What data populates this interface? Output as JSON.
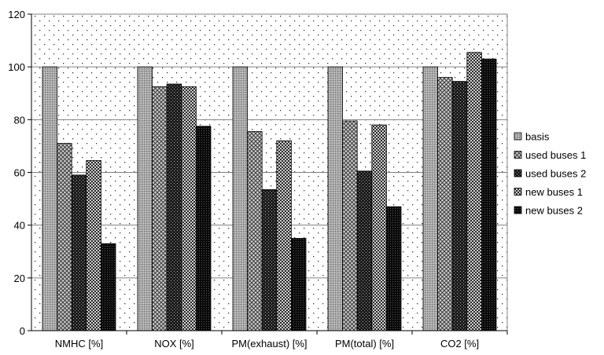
{
  "chart_data": {
    "type": "bar",
    "title": "",
    "xlabel": "",
    "ylabel": "",
    "ylim": [
      0,
      120
    ],
    "yticks": [
      0,
      20,
      40,
      60,
      80,
      100,
      120
    ],
    "grid": true,
    "legend_position": "right",
    "categories": [
      "NMHC [%]",
      "NOX [%]",
      "PM(exhaust) [%]",
      "PM(total) [%]",
      "CO2 [%]"
    ],
    "series": [
      {
        "name": "basis",
        "values": [
          100,
          100,
          100,
          100,
          100
        ]
      },
      {
        "name": "used buses 1",
        "values": [
          71,
          92.5,
          75.5,
          79.5,
          96
        ]
      },
      {
        "name": "used buses 2",
        "values": [
          59,
          93.5,
          53.5,
          60.5,
          94.5
        ]
      },
      {
        "name": "new buses 1",
        "values": [
          64.5,
          92.5,
          72,
          78,
          105.5
        ]
      },
      {
        "name": "new buses 2",
        "values": [
          33,
          77.5,
          35,
          47,
          103
        ]
      }
    ]
  }
}
